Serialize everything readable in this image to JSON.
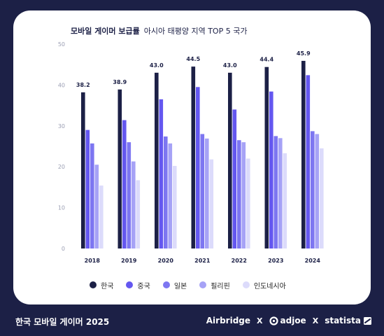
{
  "title": {
    "main": "모바일 게이머 보급률",
    "sub": "아시아 태평양 지역 TOP 5 국가"
  },
  "footer": {
    "title": "한국 모바일 게이머 2025",
    "brands": {
      "airbridge": "Airbridge",
      "x1": "X",
      "adjoe": "adjoe",
      "x2": "X",
      "statista": "statista"
    }
  },
  "chart_data": {
    "type": "bar",
    "categories": [
      "2018",
      "2019",
      "2020",
      "2021",
      "2022",
      "2023",
      "2024"
    ],
    "series": [
      {
        "name": "한국",
        "color": "#1c2046",
        "values": [
          38.2,
          38.9,
          43.0,
          44.5,
          43.0,
          44.4,
          45.9
        ]
      },
      {
        "name": "중국",
        "color": "#6457f0",
        "values": [
          29.0,
          31.4,
          36.5,
          39.5,
          34.0,
          38.4,
          42.4
        ]
      },
      {
        "name": "일본",
        "color": "#7d76f1",
        "values": [
          25.7,
          26.0,
          27.4,
          28.0,
          26.5,
          27.5,
          28.7
        ]
      },
      {
        "name": "필리핀",
        "color": "#a6a2f6",
        "values": [
          20.5,
          21.3,
          25.7,
          26.9,
          26.0,
          27.0,
          28.0
        ]
      },
      {
        "name": "인도네시아",
        "color": "#dcdbfb",
        "values": [
          15.4,
          16.7,
          20.2,
          21.8,
          22.0,
          23.3,
          24.5
        ]
      }
    ],
    "data_labels": [
      "38.2",
      "38.9",
      "43.0",
      "44.5",
      "43.0",
      "44.4",
      "45.9"
    ],
    "ylim": [
      0,
      50
    ],
    "yticks": [
      0,
      10,
      20,
      30,
      40,
      50
    ],
    "xlabel": "",
    "ylabel": "",
    "grid": false,
    "legend_position": "bottom"
  }
}
